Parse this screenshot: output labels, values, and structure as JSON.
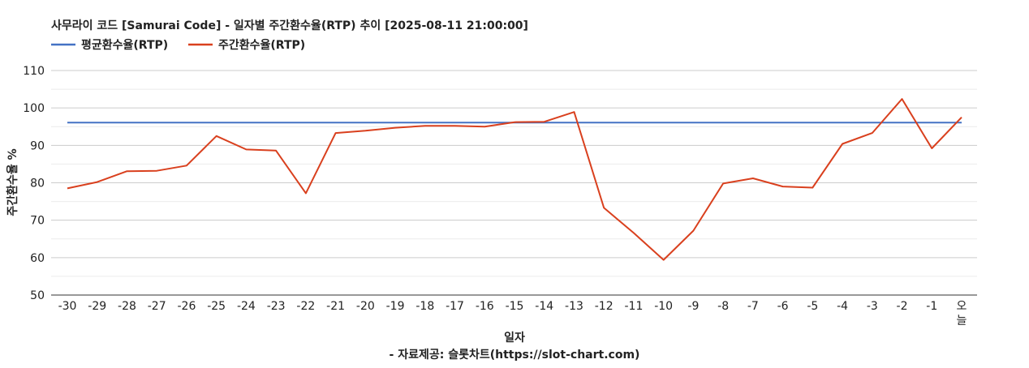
{
  "chart_data": {
    "type": "line",
    "title": "사무라이 코드 [Samurai Code] - 일자별 주간환수율(RTP) 추이 [2025-08-11 21:00:00]",
    "xlabel": "일자",
    "ylabel": "주간환수율 %",
    "source": "- 자료제공: 슬롯차트(https://slot-chart.com)",
    "categories": [
      "-30",
      "-29",
      "-28",
      "-27",
      "-26",
      "-25",
      "-24",
      "-23",
      "-22",
      "-21",
      "-20",
      "-19",
      "-18",
      "-17",
      "-16",
      "-15",
      "-14",
      "-13",
      "-12",
      "-11",
      "-10",
      "-9",
      "-8",
      "-7",
      "-6",
      "-5",
      "-4",
      "-3",
      "-2",
      "-1",
      "오늘"
    ],
    "ylim": [
      50,
      110
    ],
    "yticks": [
      50,
      60,
      70,
      80,
      90,
      100,
      110
    ],
    "grid": true,
    "legend_position": "top-left",
    "series": [
      {
        "name": "평균환수율(RTP)",
        "color": "#4472c4",
        "values": [
          96.1,
          96.1,
          96.1,
          96.1,
          96.1,
          96.1,
          96.1,
          96.1,
          96.1,
          96.1,
          96.1,
          96.1,
          96.1,
          96.1,
          96.1,
          96.1,
          96.1,
          96.1,
          96.1,
          96.1,
          96.1,
          96.1,
          96.1,
          96.1,
          96.1,
          96.1,
          96.1,
          96.1,
          96.1,
          96.1,
          96.1
        ]
      },
      {
        "name": "주간환수율(RTP)",
        "color": "#d9401e",
        "values": [
          78.5,
          80.2,
          83.1,
          83.2,
          84.6,
          92.5,
          88.9,
          88.6,
          77.2,
          93.3,
          93.9,
          94.7,
          95.2,
          95.2,
          95.0,
          96.2,
          96.3,
          98.9,
          73.3,
          66.6,
          59.4,
          67.2,
          79.8,
          81.2,
          79.0,
          78.7,
          90.4,
          93.3,
          102.4,
          89.2,
          97.5
        ]
      }
    ]
  }
}
